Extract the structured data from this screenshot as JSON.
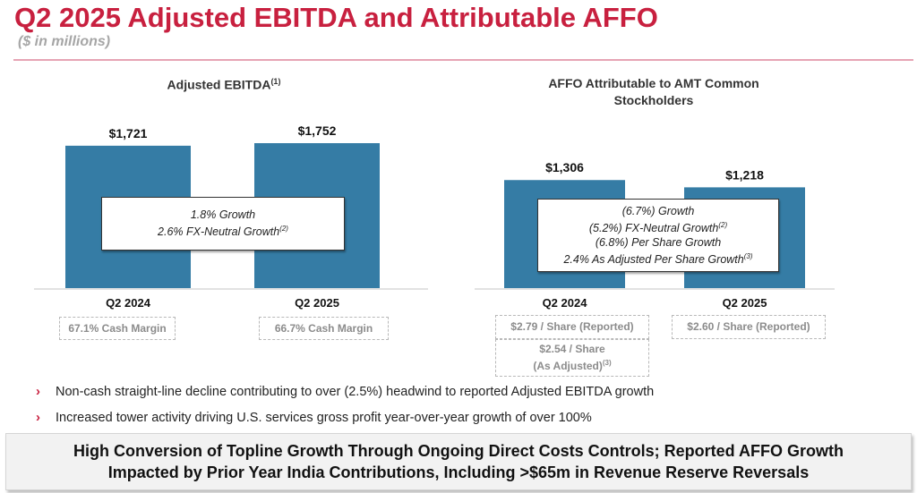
{
  "header": {
    "title": "Q2 2025 Adjusted EBITDA and Attributable AFFO",
    "subtitle": "($ in millions)"
  },
  "chart_data": [
    {
      "type": "bar",
      "title": "Adjusted EBITDA",
      "title_footnote": "(1)",
      "categories": [
        "Q2 2024",
        "Q2 2025"
      ],
      "values": [
        1721,
        1752
      ],
      "value_labels": [
        "$1,721",
        "$1,752"
      ],
      "xlabel": "",
      "ylabel": "",
      "ylim": [
        0,
        1900
      ],
      "grid": false,
      "callout": [
        {
          "text": "1.8% Growth",
          "footnote": ""
        },
        {
          "text": "2.6% FX-Neutral Growth",
          "footnote": "(2)"
        }
      ],
      "notes": [
        [
          {
            "text": "67.1% Cash Margin",
            "footnote": ""
          }
        ],
        [
          {
            "text": "66.7% Cash Margin",
            "footnote": ""
          }
        ]
      ]
    },
    {
      "type": "bar",
      "title": "AFFO Attributable to AMT Common Stockholders",
      "title_line1": "AFFO Attributable to AMT Common",
      "title_line2": "Stockholders",
      "categories": [
        "Q2 2024",
        "Q2 2025"
      ],
      "values": [
        1306,
        1218
      ],
      "value_labels": [
        "$1,306",
        "$1,218"
      ],
      "xlabel": "",
      "ylabel": "",
      "ylim": [
        0,
        1900
      ],
      "grid": false,
      "callout": [
        {
          "text": "(6.7%) Growth",
          "footnote": ""
        },
        {
          "text": "(5.2%) FX-Neutral Growth",
          "footnote": "(2)"
        },
        {
          "text": "(6.8%) Per Share Growth",
          "footnote": ""
        },
        {
          "text": "2.4% As Adjusted Per Share Growth",
          "footnote": "(3)"
        }
      ],
      "notes": [
        [
          {
            "text": "$2.79 / Share (Reported)",
            "footnote": ""
          },
          {
            "line1": "$2.54 / Share",
            "line2": "(As Adjusted)",
            "footnote": "(3)"
          }
        ],
        [
          {
            "text": "$2.60 / Share (Reported)",
            "footnote": ""
          }
        ]
      ]
    }
  ],
  "bullets": [
    "Non-cash straight-line decline contributing to over (2.5%) headwind to reported Adjusted EBITDA growth",
    "Increased tower activity driving U.S. services gross profit year-over-year growth of over 100%"
  ],
  "bullet_icon": "chevron-right-icon",
  "banner": {
    "line1": "High Conversion of Topline Growth Through Ongoing Direct Costs Controls; Reported AFFO Growth",
    "line2": "Impacted by Prior Year India Contributions, Including >$65m in Revenue Reserve Reversals"
  },
  "colors": {
    "accent": "#c8203f",
    "bar": "#357ca5",
    "subtitle": "#a6a6a6",
    "note_text": "#8c8c8c"
  }
}
